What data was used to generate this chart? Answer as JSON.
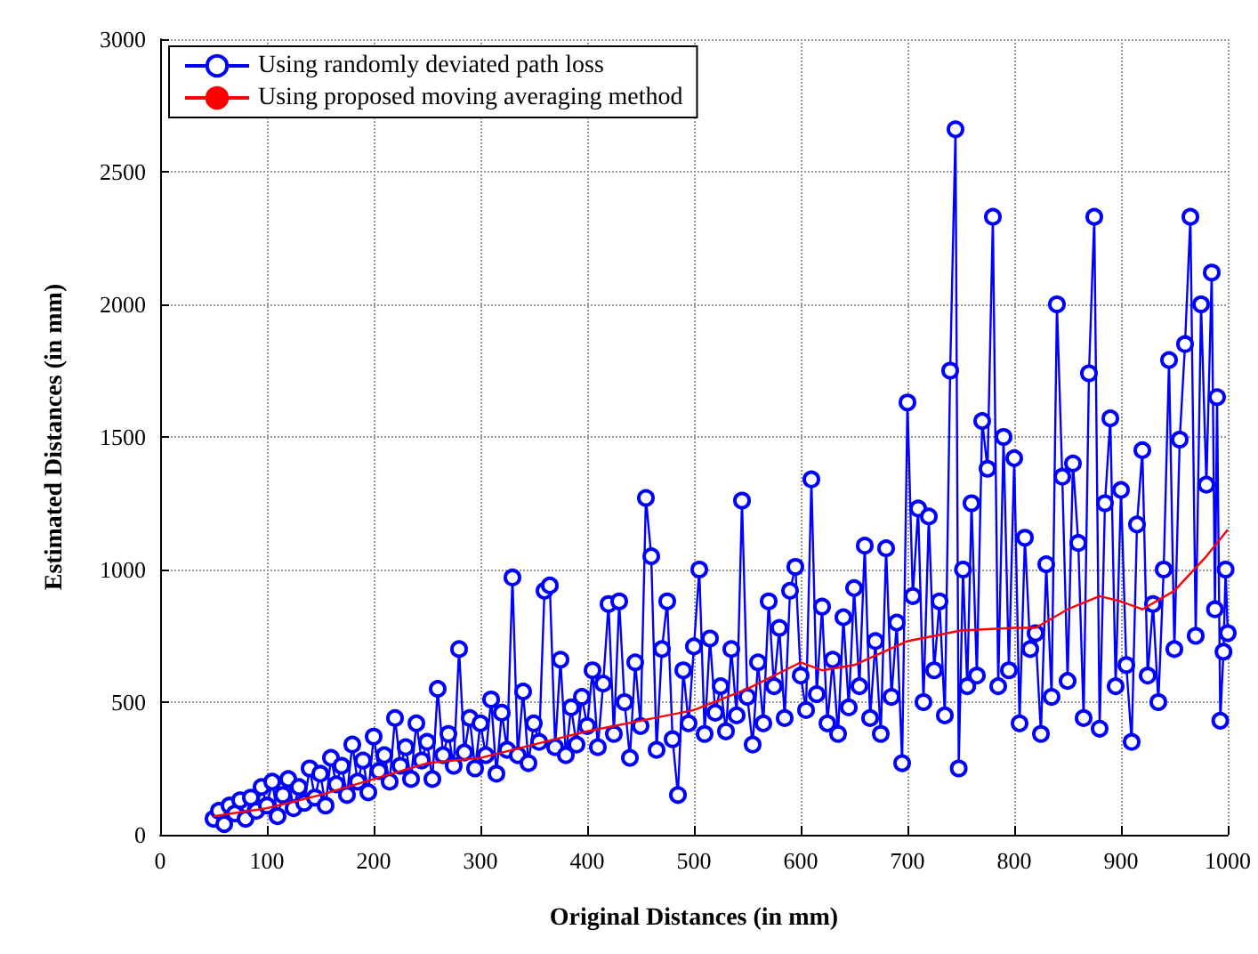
{
  "chart_data": {
    "type": "line",
    "xlabel": "Original Distances (in mm)",
    "ylabel": "Estimated Distances (in mm)",
    "xlim": [
      0,
      1000
    ],
    "xticks": [
      0,
      100,
      200,
      300,
      400,
      500,
      600,
      700,
      800,
      900,
      1000
    ],
    "ylim": [
      0,
      3000
    ],
    "yticks": [
      0,
      500,
      1000,
      1500,
      2000,
      2500,
      3000
    ],
    "grid": true,
    "legend": "top left",
    "line_style": "solid",
    "series": [
      {
        "name": "Using randomly deviated path loss",
        "color": "#0000ff",
        "marker": "circle",
        "x": [
          50,
          55,
          60,
          65,
          70,
          75,
          80,
          85,
          90,
          95,
          100,
          105,
          110,
          115,
          120,
          125,
          130,
          135,
          140,
          145,
          150,
          155,
          160,
          165,
          170,
          175,
          180,
          185,
          190,
          195,
          200,
          205,
          210,
          215,
          220,
          225,
          230,
          235,
          240,
          245,
          250,
          255,
          260,
          265,
          270,
          275,
          280,
          285,
          290,
          295,
          300,
          305,
          310,
          315,
          320,
          325,
          330,
          335,
          340,
          345,
          350,
          355,
          360,
          365,
          370,
          375,
          380,
          385,
          390,
          395,
          400,
          405,
          410,
          415,
          420,
          425,
          430,
          435,
          440,
          445,
          450,
          455,
          460,
          465,
          470,
          475,
          480,
          485,
          490,
          495,
          500,
          505,
          510,
          515,
          520,
          525,
          530,
          535,
          540,
          545,
          550,
          555,
          560,
          565,
          570,
          575,
          580,
          585,
          590,
          595,
          600,
          605,
          610,
          615,
          620,
          625,
          630,
          635,
          640,
          645,
          650,
          655,
          660,
          665,
          670,
          675,
          680,
          685,
          690,
          695,
          700,
          705,
          710,
          715,
          720,
          725,
          730,
          735,
          740,
          745,
          748,
          752,
          756,
          760,
          765,
          770,
          775,
          780,
          785,
          790,
          795,
          800,
          805,
          810,
          815,
          820,
          825,
          830,
          835,
          840,
          845,
          850,
          855,
          860,
          865,
          870,
          875,
          880,
          885,
          890,
          895,
          900,
          905,
          910,
          915,
          920,
          925,
          930,
          935,
          940,
          945,
          950,
          955,
          960,
          965,
          970,
          975,
          980,
          985,
          988,
          990,
          993,
          996,
          998,
          1000
        ],
        "values": [
          60,
          90,
          40,
          110,
          80,
          130,
          60,
          140,
          90,
          180,
          110,
          200,
          70,
          150,
          210,
          100,
          180,
          120,
          250,
          140,
          230,
          110,
          290,
          190,
          260,
          150,
          340,
          200,
          280,
          160,
          370,
          240,
          300,
          200,
          440,
          260,
          330,
          210,
          420,
          280,
          350,
          210,
          550,
          300,
          380,
          260,
          700,
          310,
          440,
          250,
          420,
          300,
          510,
          230,
          460,
          320,
          970,
          300,
          540,
          270,
          420,
          350,
          920,
          940,
          330,
          660,
          300,
          480,
          340,
          520,
          410,
          620,
          330,
          570,
          870,
          380,
          880,
          500,
          290,
          650,
          410,
          1270,
          1050,
          320,
          700,
          880,
          360,
          150,
          620,
          420,
          710,
          1000,
          380,
          740,
          460,
          560,
          390,
          700,
          450,
          1260,
          520,
          340,
          650,
          420,
          880,
          560,
          780,
          440,
          920,
          1010,
          600,
          470,
          1340,
          530,
          860,
          420,
          660,
          380,
          820,
          480,
          930,
          560,
          1090,
          440,
          730,
          380,
          1080,
          520,
          800,
          270,
          1630,
          900,
          1230,
          500,
          1200,
          620,
          880,
          450,
          1750,
          2660,
          250,
          1000,
          560,
          1250,
          600,
          1560,
          1380,
          2330,
          560,
          1500,
          620,
          1420,
          420,
          1120,
          700,
          760,
          380,
          1020,
          520,
          2000,
          1350,
          580,
          1400,
          1100,
          440,
          1740,
          2330,
          400,
          1250,
          1570,
          560,
          1300,
          640,
          350,
          1170,
          1450,
          600,
          870,
          500,
          1000,
          1790,
          700,
          1490,
          1850,
          2330,
          750,
          2000,
          1320,
          2120,
          850,
          1650,
          430,
          690,
          1000,
          760
        ]
      },
      {
        "name": "Using proposed moving averaging method",
        "color": "#ff0000",
        "marker": "none",
        "x": [
          50,
          100,
          150,
          200,
          250,
          300,
          350,
          400,
          450,
          500,
          550,
          600,
          620,
          650,
          700,
          750,
          800,
          820,
          850,
          880,
          900,
          920,
          950,
          980,
          1000
        ],
        "values": [
          70,
          100,
          150,
          210,
          270,
          290,
          340,
          390,
          430,
          470,
          550,
          650,
          620,
          640,
          730,
          770,
          780,
          780,
          850,
          900,
          880,
          850,
          920,
          1050,
          1150
        ]
      }
    ]
  }
}
